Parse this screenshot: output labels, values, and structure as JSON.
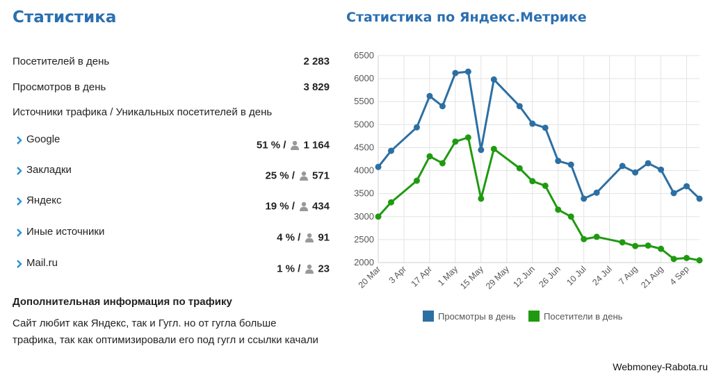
{
  "left": {
    "title": "Статистика",
    "visitors_label": "Посетителей в день",
    "visitors_value": "2 283",
    "views_label": "Просмотров в день",
    "views_value": "3 829",
    "sources_header": "Источники трафика / Уникальных посетителей в день",
    "sources": [
      {
        "name": "Google",
        "percent": "51 % /",
        "count": "1 164"
      },
      {
        "name": "Закладки",
        "percent": "25 % /",
        "count": "571"
      },
      {
        "name": "Яндекс",
        "percent": "19 % /",
        "count": "434"
      },
      {
        "name": "Иные источники",
        "percent": "4 % /",
        "count": "91"
      },
      {
        "name": "Mail.ru",
        "percent": "1 % /",
        "count": "23"
      }
    ],
    "extra_title": "Дополнительная информация по трафику",
    "extra_text": "Сайт любит как Яндекс, так и Гугл. но от гугла больше трафика, так как оптимизировали его под гугл и ссылки качали"
  },
  "right": {
    "title": "Статистика по Яндекс.Метрике"
  },
  "watermark": "Webmoney-Rabota.ru",
  "colors": {
    "heading": "#2a6fb0",
    "views": "#2c6fa3",
    "visitors": "#1f9a10",
    "chevron": "#2a8fd6",
    "user_icon": "#999999"
  },
  "chart_data": {
    "type": "line",
    "ylim": [
      2000,
      6500
    ],
    "yticks": [
      2000,
      2500,
      3000,
      3500,
      4000,
      4500,
      5000,
      5500,
      6000,
      6500
    ],
    "x_range": [
      0,
      25
    ],
    "x_ticks": [
      {
        "x": 0,
        "label": "20 Mar"
      },
      {
        "x": 2,
        "label": "3 Apr"
      },
      {
        "x": 4,
        "label": "17 Apr"
      },
      {
        "x": 6,
        "label": "1 May"
      },
      {
        "x": 8,
        "label": "15 May"
      },
      {
        "x": 10,
        "label": "29 May"
      },
      {
        "x": 12,
        "label": "12 Jun"
      },
      {
        "x": 14,
        "label": "26 Jun"
      },
      {
        "x": 16,
        "label": "10 Jul"
      },
      {
        "x": 18,
        "label": "24 Jul"
      },
      {
        "x": 20,
        "label": "7 Aug"
      },
      {
        "x": 22,
        "label": "21 Aug"
      },
      {
        "x": 24,
        "label": "4 Sep"
      }
    ],
    "grid": true,
    "legend_position": "bottom",
    "series": [
      {
        "name": "Просмотры в день",
        "color": "#2c6fa3",
        "x": [
          0,
          1,
          3,
          4,
          5,
          6,
          7,
          8,
          9,
          11,
          12,
          13,
          14,
          15,
          16,
          17,
          19,
          20,
          21,
          22,
          23,
          24,
          25
        ],
        "values": [
          4080,
          4430,
          4940,
          5620,
          5400,
          6120,
          6150,
          4450,
          5980,
          5400,
          5020,
          4930,
          4210,
          4130,
          3390,
          3520,
          4100,
          3960,
          4160,
          4020,
          3510,
          3660,
          3390
        ]
      },
      {
        "name": "Посетители в день",
        "color": "#1f9a10",
        "x": [
          0,
          1,
          3,
          4,
          5,
          6,
          7,
          8,
          9,
          11,
          12,
          13,
          14,
          15,
          16,
          17,
          19,
          20,
          21,
          22,
          23,
          24,
          25
        ],
        "values": [
          3000,
          3310,
          3780,
          4310,
          4160,
          4630,
          4720,
          3390,
          4470,
          4050,
          3770,
          3670,
          3150,
          3000,
          2510,
          2560,
          2440,
          2360,
          2370,
          2300,
          2080,
          2100,
          2050
        ]
      }
    ]
  }
}
